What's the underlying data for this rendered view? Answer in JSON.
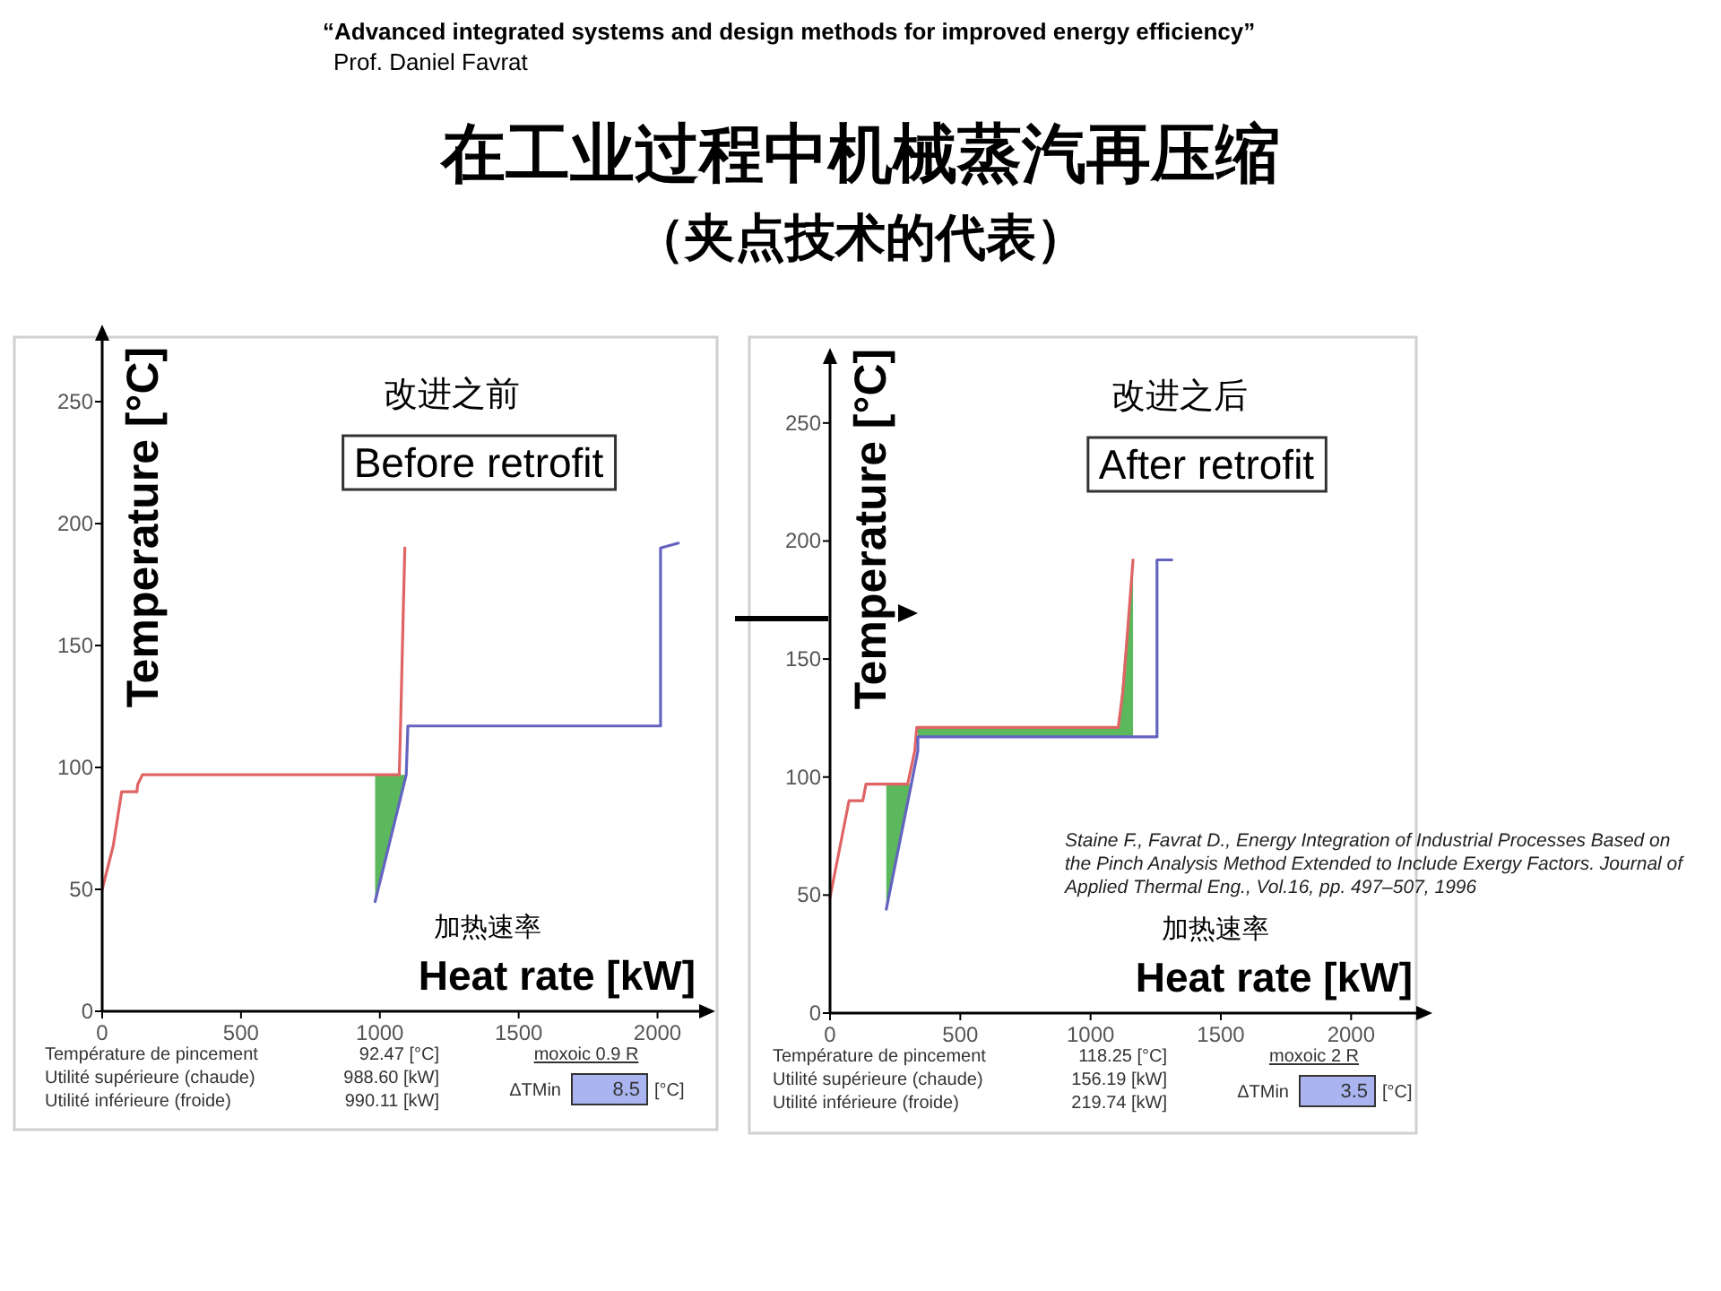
{
  "chart_data": [
    {
      "type": "other",
      "title": "在工业过程中机械蒸汽再压缩",
      "subtitle": "（夹点技术的代表）",
      "annotations": [
        "“Advanced integrated systems and design methods for improved energy efficiency”",
        "Prof. Daniel Favrat"
      ]
    },
    {
      "type": "line",
      "title": "Before retrofit",
      "subtitle": "改进之前",
      "xlabel": "Heat rate [kW]",
      "ylabel": "Temperature [°C]",
      "xlim": [
        0,
        2150
      ],
      "ylim": [
        0,
        275
      ],
      "xticks": [
        0,
        500,
        1000,
        1500,
        2000
      ],
      "yticks": [
        0,
        50,
        100,
        150,
        200,
        250
      ],
      "grid": false,
      "series": [
        {
          "color": "#e06464",
          "x": [
            0,
            40,
            70,
            125,
            128,
            145,
            1070,
            1075,
            1085,
            1090
          ],
          "values": [
            50,
            68,
            90,
            90,
            93,
            97,
            97,
            119,
            167,
            190
          ]
        },
        {
          "color": "#6464c0",
          "x": [
            983,
            1095,
            1101,
            2011,
            2011,
            2075
          ],
          "values": [
            45,
            97,
            117,
            117,
            190,
            192
          ],
          "lower": [
            45,
            97,
            null,
            null,
            null,
            null
          ],
          "upper": [
            97,
            97,
            null,
            null,
            null,
            null
          ]
        }
      ],
      "annotations": [
        "加热速率",
        "Température de pincement",
        "Utilité supérieure (chaude)",
        "Utilité inférieure (froide)",
        "92.47 [°C]",
        "988.60 [kW]",
        "990.11 [kW]",
        "moxoic 0.9 R",
        "ΔTMin",
        "8.5",
        "[°C]"
      ]
    },
    {
      "type": "line",
      "title": "After retrofit",
      "subtitle": "改进之后",
      "xlabel": "Heat rate [kW]",
      "ylabel": "Temperature [°C]",
      "xlim": [
        0,
        2250
      ],
      "ylim": [
        0,
        275
      ],
      "xticks": [
        0,
        500,
        1000,
        1500,
        2000
      ],
      "yticks": [
        0,
        50,
        100,
        150,
        200,
        250
      ],
      "grid": false,
      "series": [
        {
          "color": "#e06464",
          "x": [
            0,
            73,
            126,
            138,
            298,
            325,
            333,
            1106,
            1124,
            1163
          ],
          "values": [
            49,
            90,
            90,
            97,
            97,
            111,
            121,
            121,
            136,
            192
          ]
        },
        {
          "color": "#6464c0",
          "x": [
            216,
            312,
            337,
            337,
            1106,
            1163,
            1255,
            1255,
            1312
          ],
          "values": [
            44,
            97,
            111,
            117,
            117,
            117,
            117,
            192,
            192
          ],
          "lower": [
            44,
            97,
            111,
            117,
            117,
            117,
            null,
            null,
            null
          ],
          "upper": [
            97,
            97,
            111,
            121,
            121,
            192,
            null,
            null,
            null
          ]
        }
      ],
      "annotations": [
        "加热速率",
        "Température de pincement",
        "Utilité supérieure (chaude)",
        "Utilité inférieure (froide)",
        "118.25 [°C]",
        "156.19 [kW]",
        "219.74 [kW]",
        "moxoic 2 R",
        "ΔTMin",
        "3.5",
        "[°C]",
        "Staine F., Favrat D., Energy Integration of Industrial Processes Based on the Pinch Analysis Method Extended to Include Exergy Factors. Journal of Applied Thermal Eng., Vol.16, pp. 497–507, 1996"
      ]
    }
  ]
}
